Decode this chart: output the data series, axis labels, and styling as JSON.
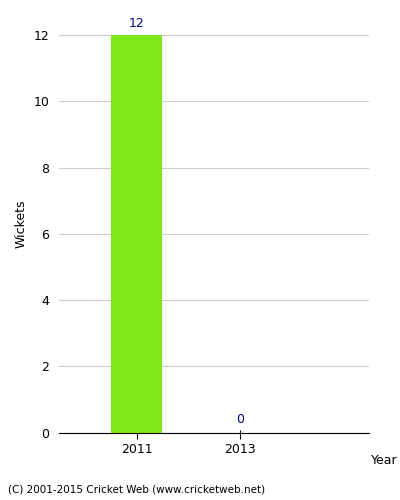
{
  "years": [
    2011,
    2013
  ],
  "wickets": [
    12,
    0
  ],
  "bar_color": "#7FE81A",
  "bar_edge_color": "#7FE81A",
  "label_color": "#00008B",
  "ylabel": "Wickets",
  "xlabel": "Year",
  "ylim": [
    0,
    12.6
  ],
  "yticks": [
    0,
    2,
    4,
    6,
    8,
    10,
    12
  ],
  "grid_color": "#cccccc",
  "background_color": "#ffffff",
  "footer": "(C) 2001-2015 Cricket Web (www.cricketweb.net)",
  "bar_width": 1.0,
  "xlim": [
    2009.5,
    2015.5
  ],
  "figsize": [
    4.0,
    5.0
  ],
  "dpi": 100
}
